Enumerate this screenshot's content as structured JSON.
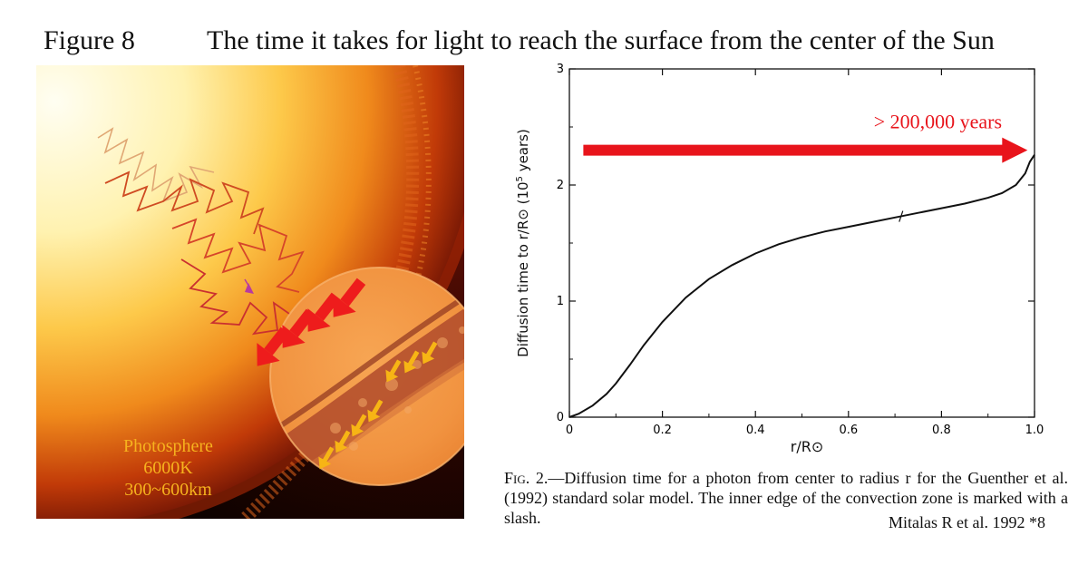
{
  "figure": {
    "label": "Figure 8",
    "title": "The time it takes for light to reach the surface from the center of the Sun"
  },
  "illustration": {
    "labels": [
      "Photosphere",
      "6000K",
      "300~600km"
    ],
    "colors": {
      "label": "#f6b21e",
      "outward_arrows": "#ee1c1c",
      "inward_arrows": "#f7b515",
      "random_walk": "#c8321f"
    }
  },
  "chart_data": {
    "type": "line",
    "title": "",
    "xlabel": "r/R⊙",
    "ylabel_prefix": "Diffusion time to r/R⊙ (10",
    "ylabel_exp": "5",
    "ylabel_suffix": " years)",
    "xlim": [
      0,
      1.0
    ],
    "ylim": [
      0,
      3
    ],
    "x_ticks": [
      {
        "value": 0,
        "label": "0"
      },
      {
        "value": 0.2,
        "label": "0.2"
      },
      {
        "value": 0.4,
        "label": "0.4"
      },
      {
        "value": 0.6,
        "label": "0.6"
      },
      {
        "value": 0.8,
        "label": "0.8"
      },
      {
        "value": 1.0,
        "label": "1.0"
      }
    ],
    "y_ticks": [
      {
        "value": 0,
        "label": "0"
      },
      {
        "value": 1,
        "label": "1"
      },
      {
        "value": 2,
        "label": "2"
      },
      {
        "value": 3,
        "label": "3"
      }
    ],
    "series": [
      {
        "name": "Diffusion time",
        "x": [
          0,
          0.02,
          0.05,
          0.08,
          0.1,
          0.13,
          0.16,
          0.2,
          0.25,
          0.3,
          0.35,
          0.4,
          0.45,
          0.5,
          0.55,
          0.6,
          0.65,
          0.7,
          0.75,
          0.8,
          0.85,
          0.9,
          0.93,
          0.96,
          0.98,
          0.99,
          1.0
        ],
        "y": [
          0,
          0.03,
          0.1,
          0.2,
          0.29,
          0.45,
          0.62,
          0.82,
          1.03,
          1.19,
          1.31,
          1.41,
          1.49,
          1.55,
          1.6,
          1.64,
          1.68,
          1.72,
          1.76,
          1.8,
          1.84,
          1.89,
          1.93,
          2.0,
          2.1,
          2.2,
          2.26
        ]
      }
    ],
    "convection_zone_mark": {
      "x": 0.713,
      "y": 1.73
    },
    "annotation": {
      "text": "> 200,000 years",
      "color": "#e8141b",
      "arrow_from_x": 0.03,
      "arrow_to_x": 0.985,
      "arrow_y": 2.3
    }
  },
  "caption": {
    "fig": "Fig. 2.",
    "text": "—Diffusion time for a photon from center to radius r for the Guenther et al. (1992) standard solar model. The inner edge of the convection zone is marked with a slash."
  },
  "credit": "Mitalas R et al. 1992 *8"
}
